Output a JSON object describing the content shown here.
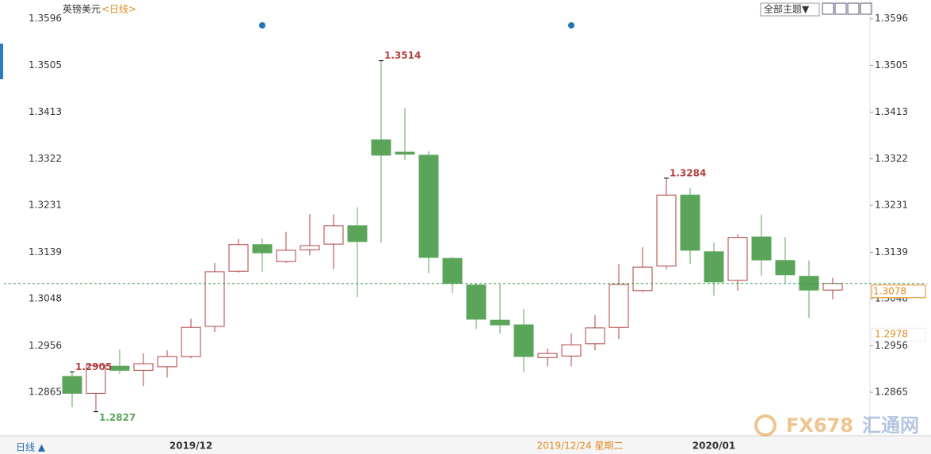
{
  "chart_data": {
    "type": "candlestick",
    "title": "英镑美元",
    "period_tag": "<日线>",
    "categories": [
      null,
      null,
      null,
      null,
      null,
      "2019/12",
      null,
      null,
      null,
      null,
      null,
      null,
      null,
      null,
      null,
      null,
      null,
      null,
      null,
      null,
      null,
      null,
      null,
      null,
      null,
      null,
      null,
      "2020/01",
      null,
      null,
      null,
      null,
      null
    ],
    "open": [
      1.2896,
      1.2863,
      1.2916,
      1.2908,
      1.2915,
      1.2935,
      1.2994,
      1.3102,
      1.3154,
      1.3121,
      1.3144,
      1.3155,
      1.3191,
      1.3359,
      1.3335,
      1.3329,
      1.3127,
      1.3075,
      1.3006,
      1.2997,
      1.2933,
      1.2936,
      1.296,
      1.2992,
      1.3064,
      1.3112,
      1.3251,
      1.314,
      1.3084,
      1.3169,
      1.3123,
      1.3092,
      1.3065
    ],
    "high": [
      1.2905,
      1.2919,
      1.2949,
      1.2941,
      1.2947,
      1.3009,
      1.3118,
      1.3165,
      1.3166,
      1.3179,
      1.3214,
      1.3213,
      1.3227,
      1.3514,
      1.3421,
      1.3337,
      1.313,
      1.3078,
      1.3076,
      1.3028,
      1.295,
      1.298,
      1.3016,
      1.3116,
      1.3149,
      1.3284,
      1.3265,
      1.3158,
      1.3174,
      1.3213,
      1.3169,
      1.3123,
      1.3089
    ],
    "low": [
      1.2836,
      1.2827,
      1.2901,
      1.2877,
      1.2894,
      1.2932,
      1.2983,
      1.3099,
      1.3101,
      1.3118,
      1.3133,
      1.3106,
      1.3051,
      1.3158,
      1.332,
      1.3098,
      1.3059,
      1.2989,
      1.298,
      1.2905,
      1.2916,
      1.2916,
      1.2947,
      1.2969,
      1.3061,
      1.3106,
      1.3116,
      1.3054,
      1.3064,
      1.3093,
      1.3078,
      1.3011,
      1.3047
    ],
    "close": [
      1.2863,
      1.2918,
      1.2908,
      1.2921,
      1.2935,
      1.2992,
      1.3101,
      1.3154,
      1.3138,
      1.3143,
      1.3152,
      1.3191,
      1.316,
      1.3329,
      1.3331,
      1.3129,
      1.3078,
      1.3008,
      1.2997,
      1.2935,
      1.2941,
      1.2958,
      1.2991,
      1.3076,
      1.311,
      1.3251,
      1.3143,
      1.3081,
      1.3168,
      1.3124,
      1.3095,
      1.3065,
      1.3078
    ],
    "up_color": "#b0413e",
    "down_color": "#5ba55b",
    "ylim": [
      1.2783,
      1.3625
    ],
    "yticks": [
      1.3596,
      1.3505,
      1.3413,
      1.3322,
      1.3231,
      1.3139,
      1.3048,
      1.2956,
      1.2865
    ],
    "annotations": [
      1.3514,
      1.2827,
      1.2905,
      1.3284
    ],
    "last_price": 1.3078,
    "crosshair_price": 1.2978,
    "crosshair_date": "2019/12/24 星期二",
    "theme_button": "全部主题▼",
    "period_button": "日线 ▲",
    "watermark": {
      "brand": "FX678",
      "name": "汇通网"
    }
  }
}
